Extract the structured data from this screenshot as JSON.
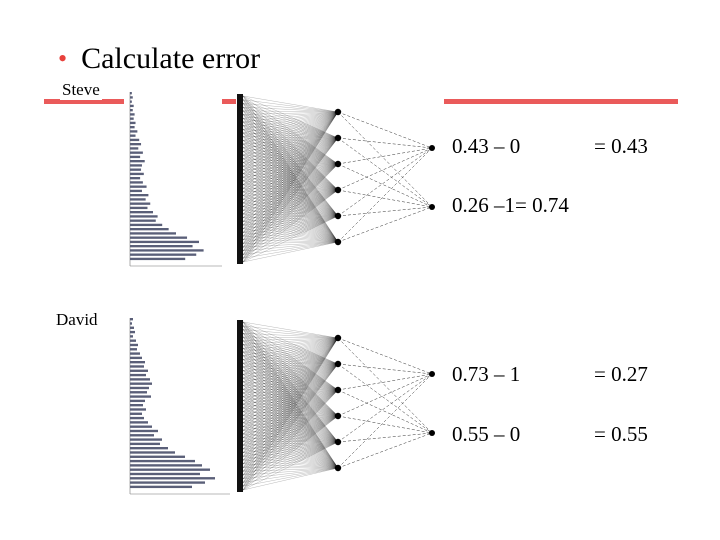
{
  "title": "Calculate error",
  "colors": {
    "accent": "#ea5a5a",
    "bullet": "#e8413c",
    "bars": "#5a5f78"
  },
  "examples": [
    {
      "name": "Steve",
      "bars": [
        0.02,
        0.03,
        0.02,
        0.04,
        0.03,
        0.05,
        0.04,
        0.06,
        0.05,
        0.08,
        0.06,
        0.1,
        0.12,
        0.09,
        0.14,
        0.11,
        0.16,
        0.13,
        0.12,
        0.15,
        0.11,
        0.14,
        0.18,
        0.13,
        0.2,
        0.17,
        0.22,
        0.19,
        0.25,
        0.3,
        0.28,
        0.35,
        0.42,
        0.5,
        0.62,
        0.75,
        0.68,
        0.8,
        0.72,
        0.6
      ],
      "errors": [
        {
          "calc": "0.43 – 0",
          "result": "= 0.43"
        },
        {
          "calc": "0.26 –1= 0.74",
          "result": ""
        }
      ]
    },
    {
      "name": "David",
      "bars": [
        0.03,
        0.02,
        0.04,
        0.05,
        0.03,
        0.06,
        0.08,
        0.07,
        0.1,
        0.12,
        0.15,
        0.14,
        0.18,
        0.16,
        0.2,
        0.22,
        0.19,
        0.17,
        0.21,
        0.15,
        0.13,
        0.16,
        0.12,
        0.14,
        0.18,
        0.22,
        0.28,
        0.24,
        0.32,
        0.3,
        0.38,
        0.45,
        0.55,
        0.65,
        0.72,
        0.8,
        0.7,
        0.85,
        0.75,
        0.62
      ],
      "errors": [
        {
          "calc": "0.73 – 1",
          "result": "= 0.27"
        },
        {
          "calc": "0.55 – 0",
          "result": "= 0.55"
        }
      ]
    }
  ]
}
